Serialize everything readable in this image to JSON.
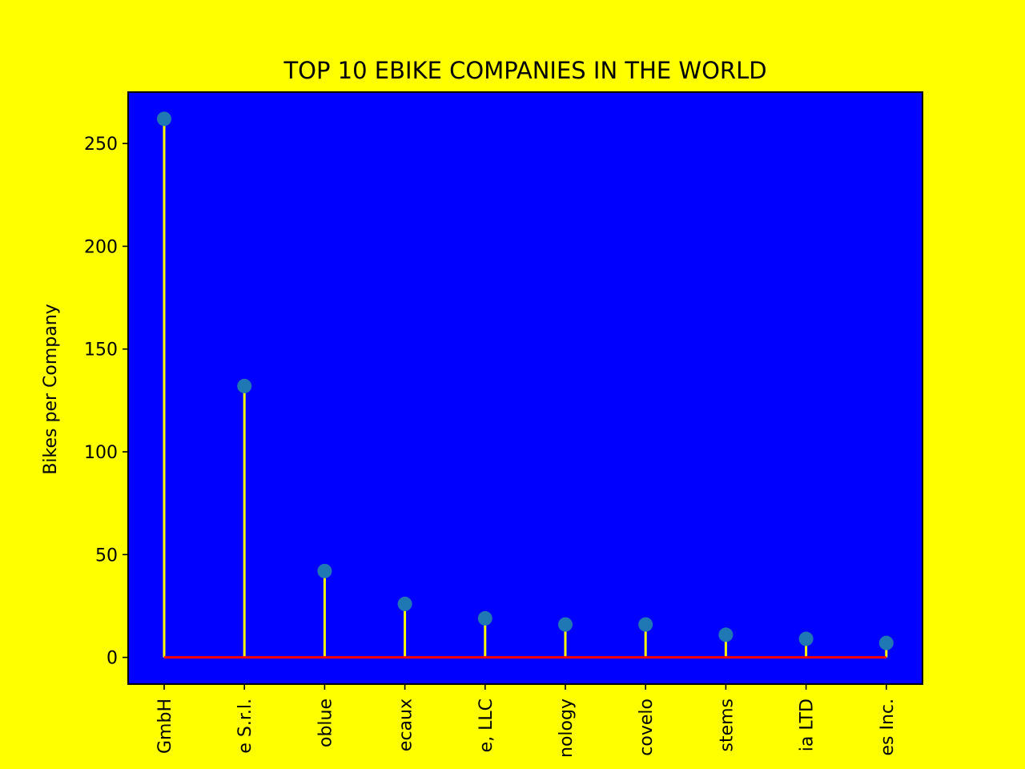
{
  "chart_data": {
    "type": "stem",
    "title": "TOP 10 EBIKE COMPANIES IN THE WORLD",
    "xlabel": "",
    "ylabel": "Bikes per Company",
    "categories": [
      "GmbH",
      "e S.r.l.",
      "oblue",
      "ecaux",
      "e, LLC",
      "nology",
      "covelo",
      "stems",
      "ia LTD",
      "es Inc."
    ],
    "values": [
      262,
      132,
      42,
      26,
      19,
      16,
      16,
      11,
      9,
      7
    ],
    "ylim": [
      -13,
      275
    ],
    "yticks": [
      0,
      50,
      100,
      150,
      200,
      250
    ],
    "grid": false,
    "colors": {
      "page_background": "#ffff00",
      "plot_background": "#0000ff",
      "stem": "#ffff00",
      "marker": "#1f77b4",
      "baseline": "#ff0000"
    }
  }
}
